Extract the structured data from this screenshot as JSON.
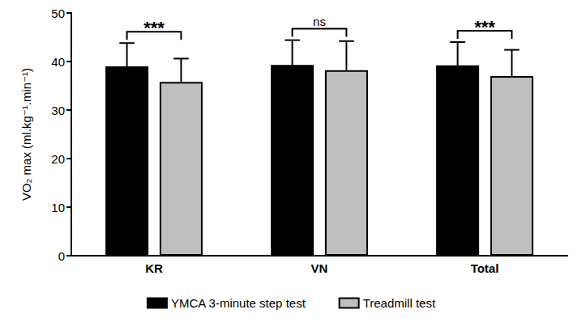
{
  "chart_data": {
    "type": "bar",
    "categories": [
      "KR",
      "VN",
      "Total"
    ],
    "series": [
      {
        "name": "YMCA 3-minute step test",
        "color": "#000000",
        "values": [
          39.0,
          39.3,
          39.2
        ],
        "errors": [
          4.8,
          5.1,
          4.8
        ]
      },
      {
        "name": "Treadmill test",
        "color": "#bfbfbf",
        "values": [
          35.8,
          38.2,
          37.0
        ],
        "errors": [
          4.8,
          6.0,
          5.4
        ]
      }
    ],
    "y_label": "VO₂ max (ml.kg⁻¹.min⁻¹)",
    "ylim": [
      0,
      50
    ],
    "yticks": [
      0,
      10,
      20,
      30,
      40,
      50
    ],
    "annotations": [
      {
        "category": "KR",
        "text": "***"
      },
      {
        "category": "VN",
        "text": "ns"
      },
      {
        "category": "Total",
        "text": "***"
      }
    ],
    "legend": "bottom",
    "grid": false
  }
}
